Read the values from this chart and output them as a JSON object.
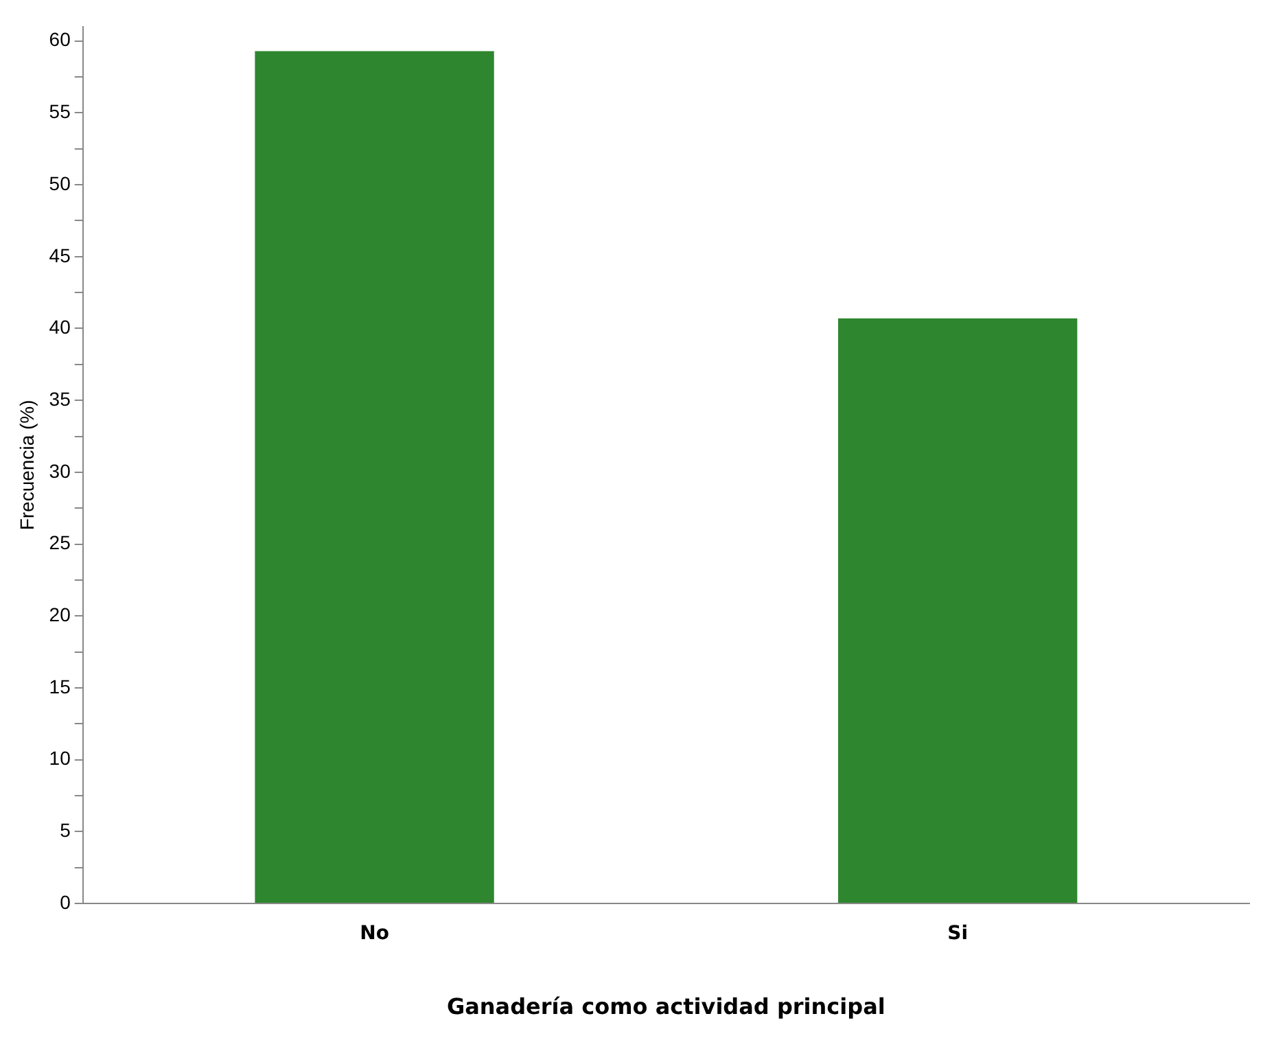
{
  "chart_data": {
    "type": "bar",
    "xlabel": "Ganadería como actividad principal",
    "ylabel": "Frecuencia (%)",
    "categories": [
      "No",
      "Si"
    ],
    "values": [
      59.3,
      40.7
    ],
    "color": "#2e862e",
    "ylim": [
      0,
      61
    ],
    "yticks": [
      0,
      {
        "value": 2.5,
        "label": null
      },
      5,
      {
        "value": 7.5,
        "label": null
      },
      10,
      {
        "value": 12.5,
        "label": null
      },
      15,
      {
        "value": 17.5,
        "label": null
      },
      20,
      {
        "value": 22.5,
        "label": null
      },
      25,
      {
        "value": 27.5,
        "label": null
      },
      30,
      {
        "value": 32.5,
        "label": null
      },
      35,
      {
        "value": 37.5,
        "label": null
      },
      40,
      {
        "value": 42.5,
        "label": null
      },
      45,
      {
        "value": 47.5,
        "label": null
      },
      50,
      {
        "value": 52.5,
        "label": null
      },
      55,
      {
        "value": 57.5,
        "label": null
      },
      60
    ],
    "grid": false,
    "legend": false
  }
}
